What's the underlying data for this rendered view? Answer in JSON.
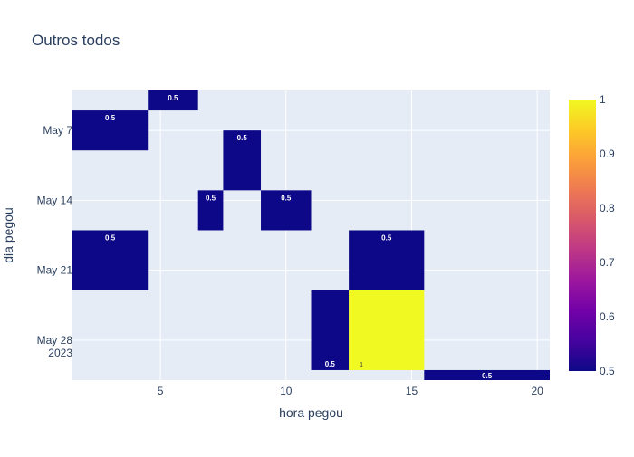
{
  "chart_data": {
    "type": "heatmap",
    "title": "Outros todos",
    "xlabel": "hora pegou",
    "ylabel": "dia pegou",
    "xlim": [
      1.5,
      20.5
    ],
    "ylim": [
      "2023-05-03",
      "2023-06-01"
    ],
    "x_ticks": [
      {
        "value": 5,
        "label": "5"
      },
      {
        "value": 10,
        "label": "10"
      },
      {
        "value": 15,
        "label": "15"
      },
      {
        "value": 20,
        "label": "20"
      }
    ],
    "y_ticks": [
      {
        "value": "2023-05-07",
        "label": "May 7",
        "sublabel": ""
      },
      {
        "value": "2023-05-14",
        "label": "May 14",
        "sublabel": ""
      },
      {
        "value": "2023-05-21",
        "label": "May 21",
        "sublabel": ""
      },
      {
        "value": "2023-05-28",
        "label": "May 28",
        "sublabel": "2023"
      }
    ],
    "cells": [
      {
        "x0": 4.5,
        "x1": 6.5,
        "y0": "2023-05-03",
        "y1": "2023-05-05",
        "value": 0.5,
        "label": "0.5"
      },
      {
        "x0": 1.5,
        "x1": 4.5,
        "y0": "2023-05-05",
        "y1": "2023-05-09",
        "value": 0.5,
        "label": "0.5"
      },
      {
        "x0": 7.5,
        "x1": 9.0,
        "y0": "2023-05-07",
        "y1": "2023-05-13",
        "value": 0.5,
        "label": "0.5"
      },
      {
        "x0": 6.5,
        "x1": 7.5,
        "y0": "2023-05-13",
        "y1": "2023-05-17",
        "value": 0.5,
        "label": "0.5"
      },
      {
        "x0": 9.0,
        "x1": 11.0,
        "y0": "2023-05-13",
        "y1": "2023-05-17",
        "value": 0.5,
        "label": "0.5"
      },
      {
        "x0": 1.5,
        "x1": 4.5,
        "y0": "2023-05-17",
        "y1": "2023-05-23",
        "value": 0.5,
        "label": "0.5"
      },
      {
        "x0": 12.5,
        "x1": 15.5,
        "y0": "2023-05-17",
        "y1": "2023-05-23",
        "value": 0.5,
        "label": "0.5"
      },
      {
        "x0": 11.0,
        "x1": 12.5,
        "y0": "2023-05-23",
        "y1": "2023-05-31",
        "value": 0.5,
        "label": "0.5"
      },
      {
        "x0": 12.5,
        "x1": 15.5,
        "y0": "2023-05-23",
        "y1": "2023-05-31",
        "value": 1,
        "label": "1"
      },
      {
        "x0": 15.5,
        "x1": 20.5,
        "y0": "2023-05-31",
        "y1": "2023-06-01",
        "value": 0.5,
        "label": "0.5"
      }
    ],
    "colorscale": {
      "min": 0.5,
      "max": 1,
      "ticks": [
        "0.5",
        "0.6",
        "0.7",
        "0.8",
        "0.9",
        "1"
      ],
      "colors": [
        "#0d0887",
        "#46039f",
        "#7201a8",
        "#9c179e",
        "#bd3786",
        "#d8576b",
        "#ed7953",
        "#fb9f3a",
        "#fdca26",
        "#f0f921"
      ]
    },
    "grid": true,
    "legend": "colorbar-right",
    "plot_background": "#e5ecf6"
  }
}
